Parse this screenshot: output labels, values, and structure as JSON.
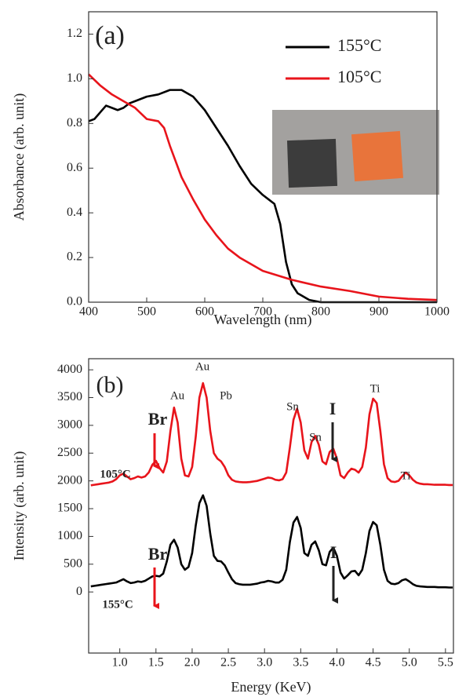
{
  "chart_data": [
    {
      "type": "line",
      "xlabel": "Wavelength (nm)",
      "ylabel": "Absorbance (arb. unit)",
      "annotations": [
        "(a)"
      ],
      "legend": "upper right",
      "xlim": [
        400,
        1000
      ],
      "ylim": [
        0,
        1.3
      ],
      "xticks": [
        400,
        500,
        600,
        700,
        800,
        900,
        1000
      ],
      "yticks": [
        {
          "value": 0,
          "label": "0.0"
        },
        0.2,
        0.4,
        0.6,
        0.8,
        {
          "value": 1,
          "label": "1.0"
        },
        1.2
      ],
      "series": [
        {
          "name": "155°C",
          "color": "#000000",
          "x": [
            400,
            410,
            420,
            430,
            440,
            450,
            460,
            470,
            480,
            490,
            500,
            520,
            540,
            560,
            580,
            600,
            620,
            640,
            660,
            680,
            700,
            710,
            720,
            730,
            740,
            750,
            760,
            780,
            800,
            850,
            900,
            950,
            1000
          ],
          "values": [
            0.81,
            0.82,
            0.85,
            0.88,
            0.87,
            0.86,
            0.87,
            0.89,
            0.9,
            0.91,
            0.92,
            0.93,
            0.95,
            0.95,
            0.92,
            0.86,
            0.78,
            0.7,
            0.61,
            0.53,
            0.48,
            0.46,
            0.44,
            0.35,
            0.18,
            0.08,
            0.04,
            0.01,
            0,
            0,
            0,
            0,
            0
          ]
        },
        {
          "name": "105°C",
          "color": "#e8141b",
          "x": [
            400,
            420,
            440,
            460,
            480,
            500,
            520,
            530,
            540,
            560,
            580,
            600,
            620,
            640,
            660,
            680,
            700,
            750,
            800,
            850,
            900,
            950,
            1000
          ],
          "values": [
            1.02,
            0.97,
            0.93,
            0.9,
            0.87,
            0.82,
            0.81,
            0.78,
            0.7,
            0.56,
            0.46,
            0.37,
            0.3,
            0.24,
            0.2,
            0.17,
            0.14,
            0.1,
            0.07,
            0.05,
            0.025,
            0.015,
            0.01
          ]
        }
      ]
    },
    {
      "type": "line",
      "xlabel": "Energy (KeV)",
      "ylabel": "Intensity (arb. unit)",
      "annotations": [
        "(b)",
        "Au",
        "Au",
        "Pb",
        "Sn",
        "Sn",
        "Ti",
        "Ti",
        "Br",
        "I",
        "Br",
        "I"
      ],
      "xlim": [
        0.57,
        5.61
      ],
      "ylim": [
        -1100,
        4200
      ],
      "xticks": [
        {
          "value": 1,
          "label": "1.0"
        },
        1.5,
        {
          "value": 2,
          "label": "2.0"
        },
        2.5,
        {
          "value": 3,
          "label": "3.0"
        },
        3.5,
        {
          "value": 4,
          "label": "4.0"
        },
        4.5,
        {
          "value": 5,
          "label": "5.0"
        },
        5.5
      ],
      "yticks": [
        0,
        500,
        1000,
        1500,
        2000,
        2500,
        3000,
        3500,
        4000
      ],
      "series": [
        {
          "name": "105°C",
          "color": "#e8141b",
          "x": [
            0.6,
            0.65,
            0.7,
            0.75,
            0.8,
            0.85,
            0.9,
            0.95,
            1,
            1.05,
            1.1,
            1.15,
            1.2,
            1.25,
            1.3,
            1.35,
            1.4,
            1.45,
            1.5,
            1.55,
            1.6,
            1.65,
            1.7,
            1.75,
            1.8,
            1.85,
            1.9,
            1.95,
            2,
            2.05,
            2.1,
            2.15,
            2.2,
            2.25,
            2.3,
            2.35,
            2.4,
            2.45,
            2.5,
            2.55,
            2.6,
            2.65,
            2.7,
            2.75,
            2.8,
            2.85,
            2.9,
            2.95,
            3,
            3.05,
            3.1,
            3.15,
            3.2,
            3.25,
            3.3,
            3.35,
            3.4,
            3.45,
            3.5,
            3.55,
            3.6,
            3.65,
            3.7,
            3.75,
            3.8,
            3.85,
            3.9,
            3.95,
            4,
            4.05,
            4.1,
            4.15,
            4.2,
            4.25,
            4.3,
            4.35,
            4.4,
            4.45,
            4.5,
            4.55,
            4.6,
            4.65,
            4.7,
            4.75,
            4.8,
            4.85,
            4.9,
            4.95,
            5,
            5.05,
            5.1,
            5.15,
            5.2,
            5.25,
            5.3,
            5.35,
            5.4,
            5.45,
            5.5,
            5.55,
            5.6
          ],
          "values": [
            1920,
            1930,
            1940,
            1950,
            1960,
            1970,
            1990,
            2030,
            2100,
            2130,
            2080,
            2030,
            2050,
            2080,
            2060,
            2080,
            2150,
            2290,
            2360,
            2230,
            2150,
            2350,
            2900,
            3320,
            3050,
            2400,
            2100,
            2080,
            2250,
            2800,
            3500,
            3760,
            3500,
            2900,
            2500,
            2400,
            2350,
            2250,
            2100,
            2020,
            1990,
            1980,
            1975,
            1975,
            1980,
            1990,
            2000,
            2020,
            2040,
            2060,
            2050,
            2020,
            2010,
            2030,
            2150,
            2600,
            3100,
            3300,
            3050,
            2550,
            2400,
            2700,
            2810,
            2650,
            2350,
            2300,
            2520,
            2580,
            2400,
            2100,
            2050,
            2150,
            2220,
            2200,
            2150,
            2250,
            2600,
            3200,
            3480,
            3400,
            2900,
            2300,
            2050,
            1990,
            1980,
            2000,
            2080,
            2150,
            2100,
            2020,
            1970,
            1950,
            1940,
            1940,
            1935,
            1930,
            1930,
            1930,
            1930,
            1925,
            1925
          ]
        },
        {
          "name": "155°C",
          "color": "#000000",
          "x": [
            0.6,
            0.65,
            0.7,
            0.75,
            0.8,
            0.85,
            0.9,
            0.95,
            1,
            1.05,
            1.1,
            1.15,
            1.2,
            1.25,
            1.3,
            1.35,
            1.4,
            1.45,
            1.5,
            1.55,
            1.6,
            1.65,
            1.7,
            1.75,
            1.8,
            1.85,
            1.9,
            1.95,
            2,
            2.05,
            2.1,
            2.15,
            2.2,
            2.25,
            2.3,
            2.35,
            2.4,
            2.45,
            2.5,
            2.55,
            2.6,
            2.65,
            2.7,
            2.75,
            2.8,
            2.85,
            2.9,
            2.95,
            3,
            3.05,
            3.1,
            3.15,
            3.2,
            3.25,
            3.3,
            3.35,
            3.4,
            3.45,
            3.5,
            3.55,
            3.6,
            3.65,
            3.7,
            3.75,
            3.8,
            3.85,
            3.9,
            3.95,
            4,
            4.05,
            4.1,
            4.15,
            4.2,
            4.25,
            4.3,
            4.35,
            4.4,
            4.45,
            4.5,
            4.55,
            4.6,
            4.65,
            4.7,
            4.75,
            4.8,
            4.85,
            4.9,
            4.95,
            5,
            5.05,
            5.1,
            5.15,
            5.2,
            5.25,
            5.3,
            5.35,
            5.4,
            5.45,
            5.5,
            5.55,
            5.6
          ],
          "values": [
            100,
            110,
            120,
            130,
            140,
            150,
            160,
            170,
            200,
            230,
            190,
            160,
            170,
            190,
            180,
            200,
            240,
            280,
            290,
            280,
            330,
            550,
            850,
            940,
            800,
            500,
            400,
            450,
            700,
            1200,
            1600,
            1740,
            1550,
            1050,
            650,
            560,
            550,
            480,
            350,
            230,
            160,
            140,
            130,
            130,
            130,
            140,
            150,
            170,
            180,
            200,
            190,
            170,
            170,
            220,
            400,
            900,
            1250,
            1350,
            1150,
            700,
            650,
            850,
            910,
            750,
            500,
            480,
            720,
            800,
            650,
            350,
            240,
            300,
            370,
            380,
            300,
            400,
            700,
            1100,
            1260,
            1200,
            850,
            400,
            200,
            150,
            140,
            160,
            210,
            230,
            190,
            140,
            110,
            100,
            95,
            90,
            90,
            90,
            85,
            85,
            85,
            80,
            80
          ]
        }
      ]
    }
  ]
}
